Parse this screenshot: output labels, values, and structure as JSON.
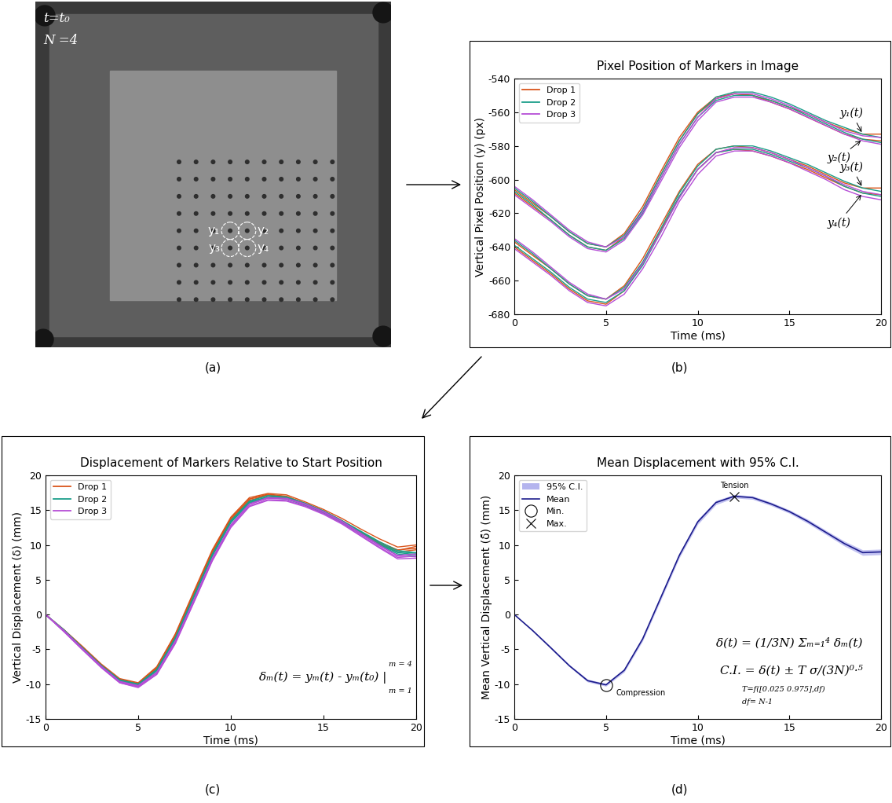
{
  "chart_data": [
    {
      "type": "image",
      "caption": "(a)",
      "texts": [
        "t=t₀",
        "N =4"
      ],
      "marker_labels": [
        "y₁",
        "y₂",
        "y₃",
        "y₄"
      ]
    },
    {
      "type": "line",
      "caption": "(b)",
      "title": "Pixel Position of Markers in Image",
      "x_label": "Time (ms)",
      "y_label": "Vertical Pixel Position (y) (px)",
      "xlim": [
        0,
        20
      ],
      "xticks": [
        0,
        5,
        10,
        15,
        20
      ],
      "ylim": [
        -680,
        -540
      ],
      "yticks": [
        -680,
        -660,
        -640,
        -620,
        -600,
        -580,
        -560,
        -540
      ],
      "grid": false,
      "legend": "upper left",
      "x": [
        0,
        1,
        2,
        3,
        4,
        5,
        6,
        7,
        8,
        9,
        10,
        11,
        12,
        13,
        14,
        15,
        16,
        17,
        18,
        19,
        20
      ],
      "series": [
        {
          "name": "Drop 1",
          "color": "#d9541a",
          "values": [
            [
              -606,
              -614,
              -622,
              -631,
              -638,
              -640,
              -632,
              -616,
              -595,
              -575,
              -560,
              -551,
              -549,
              -550,
              -553,
              -557,
              -561,
              -566,
              -570,
              -573,
              -573
            ],
            [
              -608,
              -616,
              -624,
              -633,
              -640,
              -642,
              -634,
              -618,
              -597,
              -577,
              -561,
              -552,
              -549,
              -550,
              -554,
              -558,
              -563,
              -568,
              -573,
              -576,
              -577
            ],
            [
              -637,
              -645,
              -653,
              -662,
              -669,
              -671,
              -663,
              -647,
              -627,
              -607,
              -591,
              -582,
              -580,
              -581,
              -584,
              -588,
              -592,
              -597,
              -602,
              -605,
              -605
            ],
            [
              -640,
              -648,
              -656,
              -665,
              -672,
              -674,
              -666,
              -650,
              -630,
              -610,
              -594,
              -584,
              -582,
              -583,
              -586,
              -590,
              -594,
              -599,
              -604,
              -608,
              -609
            ]
          ]
        },
        {
          "name": "Drop 2",
          "color": "#1b9e8a",
          "values": [
            [
              -605,
              -613,
              -622,
              -631,
              -638,
              -640,
              -633,
              -618,
              -597,
              -577,
              -561,
              -551,
              -548,
              -548,
              -551,
              -555,
              -560,
              -565,
              -569,
              -573,
              -575
            ],
            [
              -607,
              -615,
              -624,
              -633,
              -640,
              -642,
              -635,
              -620,
              -599,
              -579,
              -563,
              -553,
              -550,
              -550,
              -553,
              -557,
              -562,
              -567,
              -572,
              -576,
              -578
            ],
            [
              -636,
              -644,
              -653,
              -662,
              -669,
              -671,
              -664,
              -649,
              -629,
              -608,
              -592,
              -582,
              -580,
              -580,
              -583,
              -587,
              -591,
              -596,
              -601,
              -605,
              -607
            ],
            [
              -639,
              -647,
              -655,
              -664,
              -671,
              -673,
              -666,
              -651,
              -631,
              -610,
              -594,
              -584,
              -582,
              -582,
              -585,
              -589,
              -593,
              -598,
              -604,
              -608,
              -610
            ]
          ]
        },
        {
          "name": "Drop 3",
          "color": "#b54dd6",
          "values": [
            [
              -604,
              -612,
              -621,
              -630,
              -637,
              -640,
              -634,
              -619,
              -599,
              -579,
              -563,
              -552,
              -549,
              -549,
              -552,
              -556,
              -561,
              -566,
              -571,
              -574,
              -575
            ],
            [
              -609,
              -617,
              -625,
              -634,
              -641,
              -643,
              -636,
              -621,
              -601,
              -581,
              -565,
              -554,
              -551,
              -551,
              -554,
              -558,
              -563,
              -568,
              -573,
              -577,
              -579
            ],
            [
              -635,
              -643,
              -652,
              -661,
              -668,
              -671,
              -665,
              -650,
              -631,
              -611,
              -594,
              -584,
              -581,
              -581,
              -584,
              -588,
              -593,
              -598,
              -603,
              -607,
              -609
            ],
            [
              -641,
              -649,
              -657,
              -666,
              -673,
              -675,
              -668,
              -653,
              -634,
              -613,
              -597,
              -586,
              -583,
              -583,
              -586,
              -590,
              -595,
              -600,
              -606,
              -610,
              -612
            ]
          ]
        }
      ],
      "annotations": [
        {
          "text": "y₁(t)",
          "line": 0
        },
        {
          "text": "y₂(t)",
          "line": 1
        },
        {
          "text": "y₃(t)",
          "line": 2
        },
        {
          "text": "y₄(t)",
          "line": 3
        }
      ]
    },
    {
      "type": "line",
      "caption": "(c)",
      "title": "Displacement of Markers Relative to Start Position",
      "x_label": "Time (ms)",
      "y_label": "Vertical Displacement (δ) (mm)",
      "xlim": [
        0,
        20
      ],
      "xticks": [
        0,
        5,
        10,
        15,
        20
      ],
      "ylim": [
        -15,
        20
      ],
      "yticks": [
        -15,
        -10,
        -5,
        0,
        5,
        10,
        15,
        20
      ],
      "grid": false,
      "legend": "upper left",
      "x": [
        0,
        1,
        2,
        3,
        4,
        5,
        6,
        7,
        8,
        9,
        10,
        11,
        12,
        13,
        14,
        15,
        16,
        17,
        18,
        19,
        20
      ],
      "series": [
        {
          "name": "Drop 1",
          "color": "#d9541a",
          "values": [
            [
              0,
              -2.2,
              -4.6,
              -7.1,
              -9.2,
              -9.8,
              -7.5,
              -2.8,
              3.3,
              9.3,
              14.0,
              16.8,
              17.4,
              17.2,
              16.2,
              15.1,
              13.8,
              12.3,
              10.9,
              9.7,
              10.0
            ],
            [
              0,
              -2.3,
              -4.7,
              -7.2,
              -9.3,
              -10.0,
              -7.7,
              -3.0,
              3.0,
              9.0,
              13.8,
              16.6,
              17.3,
              17.0,
              16.0,
              14.9,
              13.5,
              11.9,
              10.4,
              9.3,
              9.5
            ],
            [
              0,
              -2.2,
              -4.7,
              -7.2,
              -9.3,
              -9.9,
              -7.6,
              -2.9,
              3.1,
              9.1,
              13.8,
              16.6,
              17.2,
              16.9,
              15.9,
              14.8,
              13.4,
              11.8,
              10.2,
              9.2,
              9.8
            ],
            [
              0,
              -2.3,
              -4.8,
              -7.3,
              -9.4,
              -10.1,
              -7.8,
              -3.1,
              2.9,
              8.9,
              13.6,
              16.4,
              17.1,
              16.8,
              15.8,
              14.7,
              13.3,
              11.7,
              10.1,
              9.0,
              9.3
            ]
          ]
        },
        {
          "name": "Drop 2",
          "color": "#1b9e8a",
          "values": [
            [
              0,
              -2.3,
              -4.8,
              -7.3,
              -9.4,
              -10.0,
              -7.9,
              -3.3,
              2.7,
              8.7,
              13.5,
              16.3,
              17.1,
              16.9,
              16.0,
              14.9,
              13.5,
              12.0,
              10.5,
              9.2,
              8.9
            ],
            [
              0,
              -2.3,
              -4.9,
              -7.4,
              -9.5,
              -10.1,
              -8.0,
              -3.4,
              2.6,
              8.6,
              13.4,
              16.2,
              16.9,
              16.7,
              15.8,
              14.7,
              13.3,
              11.7,
              10.1,
              8.9,
              8.6
            ],
            [
              0,
              -2.2,
              -4.8,
              -7.3,
              -9.4,
              -10.0,
              -7.9,
              -3.4,
              2.5,
              8.5,
              13.3,
              16.1,
              16.9,
              16.8,
              15.9,
              14.8,
              13.4,
              11.9,
              10.3,
              9.0,
              8.8
            ],
            [
              0,
              -2.4,
              -4.9,
              -7.5,
              -9.6,
              -10.2,
              -8.1,
              -3.6,
              2.4,
              8.4,
              13.2,
              16.0,
              16.8,
              16.6,
              15.7,
              14.6,
              13.2,
              11.6,
              10.0,
              8.7,
              8.4
            ]
          ]
        },
        {
          "name": "Drop 3",
          "color": "#b54dd6",
          "values": [
            [
              0,
              -2.4,
              -5.0,
              -7.5,
              -9.7,
              -10.3,
              -8.4,
              -3.9,
              2.0,
              8.0,
              12.8,
              15.8,
              16.7,
              16.6,
              15.8,
              14.7,
              13.3,
              11.6,
              9.9,
              8.5,
              8.7
            ],
            [
              0,
              -2.3,
              -4.9,
              -7.4,
              -9.6,
              -10.2,
              -8.3,
              -3.8,
              2.1,
              8.1,
              12.9,
              15.9,
              16.8,
              16.7,
              15.9,
              14.8,
              13.4,
              11.7,
              10.0,
              8.4,
              8.3
            ],
            [
              0,
              -2.5,
              -5.1,
              -7.6,
              -9.8,
              -10.4,
              -8.6,
              -4.1,
              1.8,
              7.8,
              12.6,
              15.6,
              16.5,
              16.4,
              15.6,
              14.5,
              13.1,
              11.4,
              9.7,
              8.2,
              8.4
            ],
            [
              0,
              -2.4,
              -5.0,
              -7.6,
              -9.8,
              -10.5,
              -8.6,
              -4.2,
              1.7,
              7.7,
              12.5,
              15.5,
              16.4,
              16.3,
              15.5,
              14.4,
              13.0,
              11.3,
              9.6,
              8.0,
              8.1
            ]
          ]
        }
      ],
      "annotations": [
        "δₘ(t) = yₘ(t) - yₘ(t₀) |",
        "m = 4",
        "m = 1"
      ]
    },
    {
      "type": "line",
      "caption": "(d)",
      "title": "Mean Displacement with 95% C.I.",
      "x_label": "Time (ms)",
      "y_label": "Mean Vertical Displacement (δ̄) (mm)",
      "xlim": [
        0,
        20
      ],
      "xticks": [
        0,
        5,
        10,
        15,
        20
      ],
      "ylim": [
        -15,
        20
      ],
      "yticks": [
        -15,
        -10,
        -5,
        0,
        5,
        10,
        15,
        20
      ],
      "grid": false,
      "legend": "upper left",
      "x": [
        0,
        1,
        2,
        3,
        4,
        5,
        6,
        7,
        8,
        9,
        10,
        11,
        12,
        13,
        14,
        15,
        16,
        17,
        18,
        19,
        20
      ],
      "series": [
        {
          "name": "95% C.I.",
          "type": "band",
          "color": "#b4b4ee",
          "lower": [
            0,
            -2.4,
            -4.95,
            -7.5,
            -9.7,
            -10.3,
            -8.25,
            -3.8,
            2.15,
            8.15,
            12.95,
            15.8,
            16.75,
            16.55,
            15.65,
            14.55,
            13.1,
            11.5,
            9.85,
            8.5,
            8.6
          ],
          "upper": [
            0,
            -2.2,
            -4.65,
            -7.2,
            -9.3,
            -9.9,
            -7.75,
            -3.2,
            2.85,
            8.85,
            13.65,
            16.4,
            17.25,
            17.05,
            16.15,
            15.05,
            13.7,
            12.1,
            10.55,
            9.3,
            9.4
          ]
        },
        {
          "name": "Mean",
          "type": "line",
          "color": "#1c1c8c",
          "values": [
            0,
            -2.3,
            -4.8,
            -7.35,
            -9.5,
            -10.1,
            -8.0,
            -3.5,
            2.5,
            8.5,
            13.3,
            16.1,
            17.0,
            16.8,
            15.9,
            14.8,
            13.4,
            11.8,
            10.2,
            8.9,
            9.0
          ]
        },
        {
          "name": "Min.",
          "type": "point",
          "marker": "circle",
          "color": "#000000",
          "x": [
            5
          ],
          "values": [
            -10.1
          ],
          "label": "Compression"
        },
        {
          "name": "Max.",
          "type": "point",
          "marker": "x",
          "color": "#000000",
          "x": [
            12
          ],
          "values": [
            17.0
          ],
          "label": "Tension"
        }
      ],
      "annotations": [
        "δ̄(t) = (1/3N) Σₘ₌₁⁴ δₘ(t)",
        "C.I. = δ̄(t) ± T σ/(3N)⁰·⁵",
        "T=f([0.025 0.975],df)",
        "df= N-1"
      ]
    }
  ]
}
